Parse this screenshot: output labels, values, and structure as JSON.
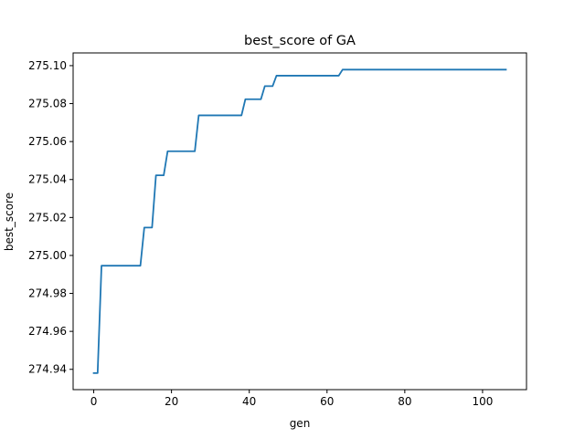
{
  "chart_data": {
    "type": "line",
    "title": "best_score of GA",
    "xlabel": "gen",
    "ylabel": "best_score",
    "xlim": [
      -5.3,
      111.3
    ],
    "ylim": [
      274.9293,
      275.1067
    ],
    "xticks": [
      0,
      20,
      40,
      60,
      80,
      100
    ],
    "yticks": [
      274.94,
      274.96,
      274.98,
      275.0,
      275.02,
      275.04,
      275.06,
      275.08,
      275.1
    ],
    "xtick_labels": [
      "0",
      "20",
      "40",
      "60",
      "80",
      "100"
    ],
    "ytick_labels": [
      "274.94",
      "274.96",
      "274.98",
      "275.00",
      "275.02",
      "275.04",
      "275.06",
      "275.08",
      "275.10"
    ],
    "grid": false,
    "colors": {
      "line": "#1f77b4"
    },
    "series": [
      {
        "x": [
          0,
          1,
          2,
          12,
          13,
          15,
          16,
          18,
          19,
          26,
          27,
          38,
          39,
          43,
          44,
          46,
          47,
          63,
          64,
          106
        ],
        "values": [
          274.938,
          274.938,
          274.9946,
          274.9946,
          275.0147,
          275.0147,
          275.0422,
          275.0422,
          275.0549,
          275.0549,
          275.0738,
          275.0738,
          275.0823,
          275.0823,
          275.0892,
          275.0892,
          275.0947,
          275.0947,
          275.0979,
          275.0979
        ]
      }
    ]
  }
}
